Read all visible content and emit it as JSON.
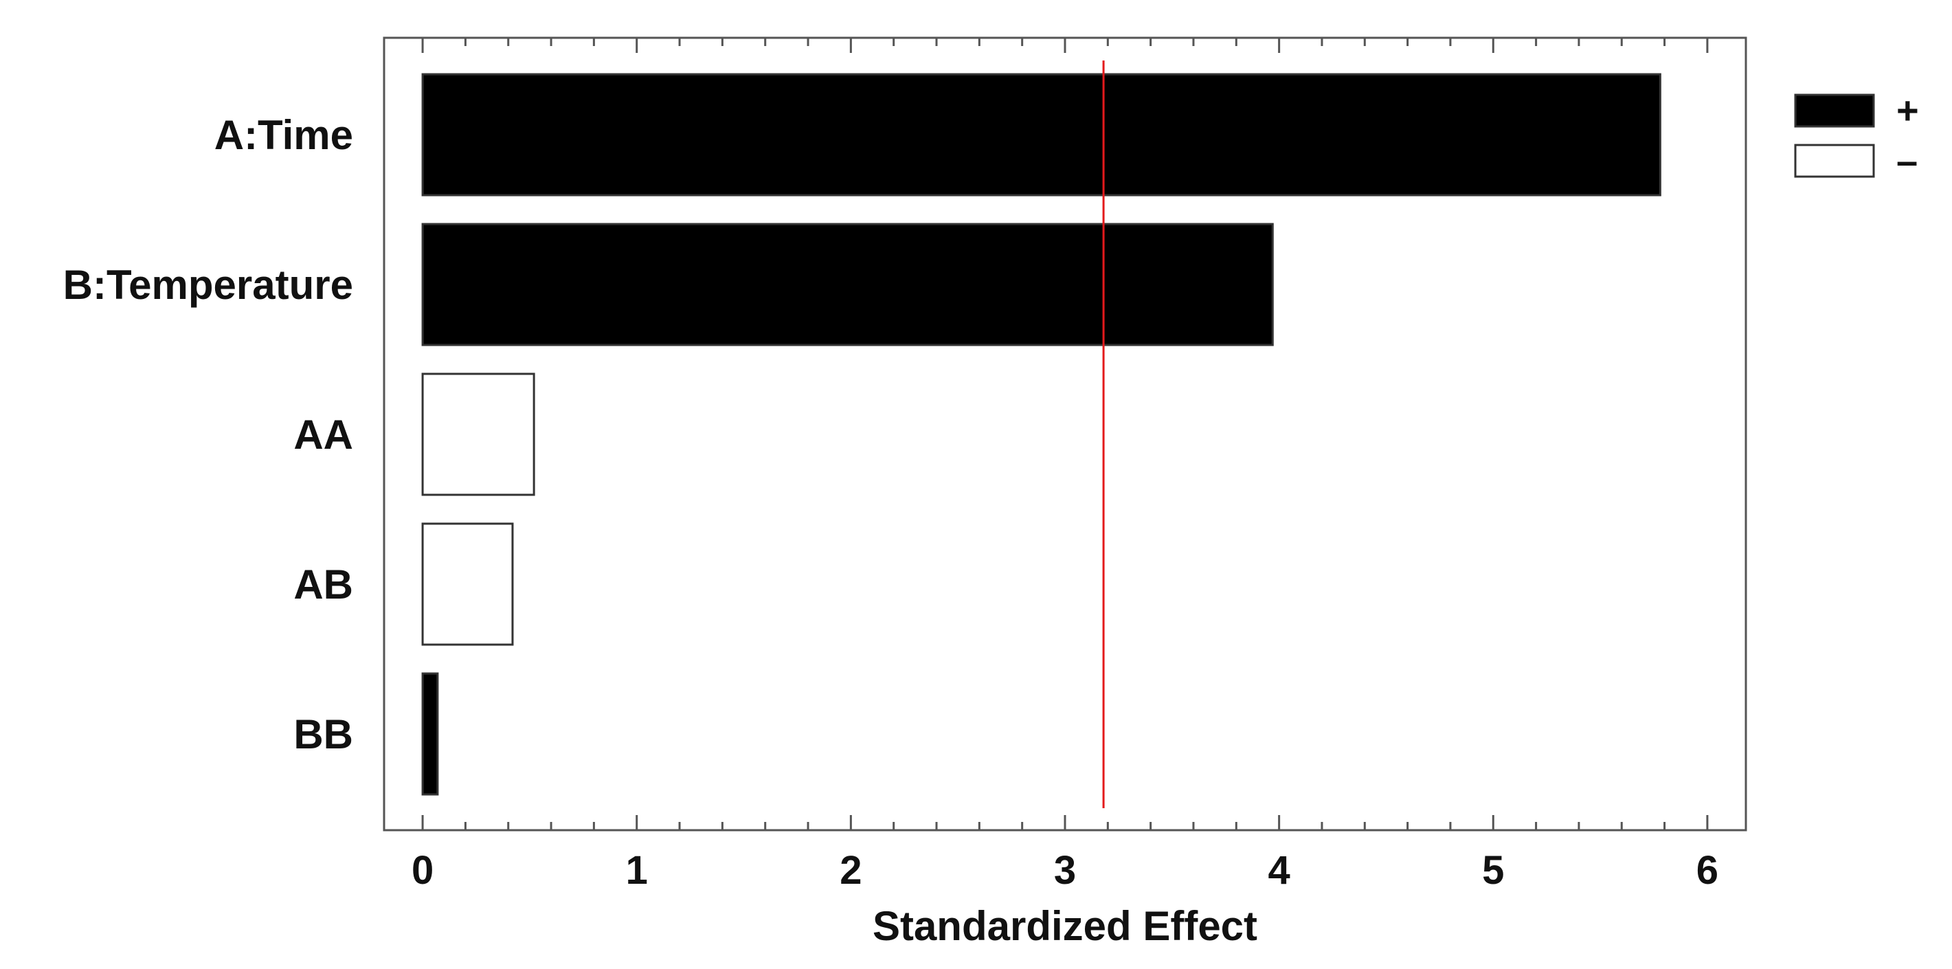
{
  "chart_data": {
    "type": "bar",
    "orientation": "horizontal",
    "title": "",
    "xlabel": "Standardized Effect",
    "ylabel": "",
    "xlim": [
      -0.18,
      6.18
    ],
    "xticks": [
      0,
      1,
      2,
      3,
      4,
      5,
      6
    ],
    "categories": [
      "A:Time",
      "B:Temperature",
      "AA",
      "AB",
      "BB"
    ],
    "values": [
      5.78,
      3.97,
      0.52,
      0.42,
      0.07
    ],
    "signs": [
      "+",
      "+",
      "-",
      "-",
      "+"
    ],
    "reference_line": {
      "value": 3.18,
      "color": "#e31a1c"
    },
    "legend": {
      "placement": "top-right",
      "entries": [
        {
          "label": "+",
          "fill": "#000000"
        },
        {
          "label": "–",
          "fill": "#ffffff"
        }
      ]
    },
    "grid": false,
    "colors": {
      "positive": "#000000",
      "negative": "#ffffff",
      "outline": "#333333",
      "reference": "#e31a1c"
    }
  }
}
